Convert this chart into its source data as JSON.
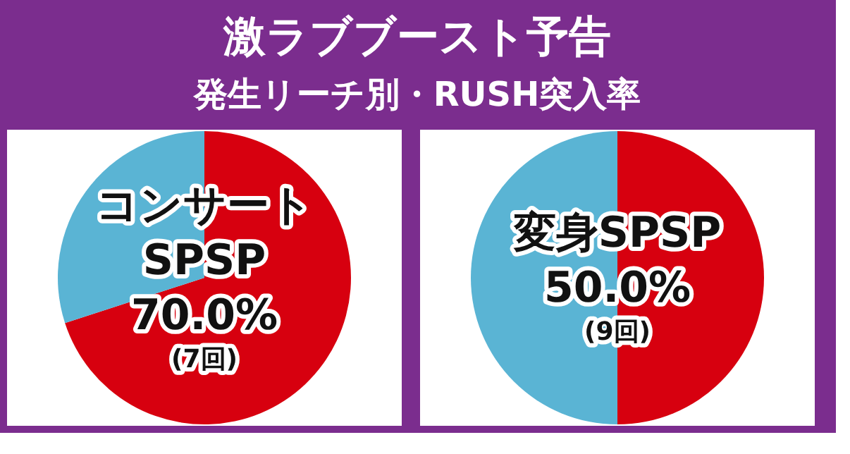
{
  "chart_data": [
    {
      "type": "other",
      "title": "激ラブブースト予告",
      "subtitle": "発生リーチ別・RUSH突入率"
    },
    {
      "type": "pie",
      "title": "コンサート\nSPSP",
      "categories": [
        null,
        null
      ],
      "values": [
        70,
        30
      ],
      "colors": [
        "#d7000f",
        "#5ab4d4"
      ],
      "value_labels": [
        "70.0%",
        null
      ],
      "annotations": [
        "(7回)"
      ]
    },
    {
      "type": "pie",
      "title": "変身SPSP",
      "categories": [
        null,
        null
      ],
      "values": [
        50,
        50
      ],
      "colors": [
        "#d7000f",
        "#5ab4d4"
      ],
      "value_labels": [
        "50.0%",
        null
      ],
      "annotations": [
        "(9回)"
      ]
    }
  ]
}
